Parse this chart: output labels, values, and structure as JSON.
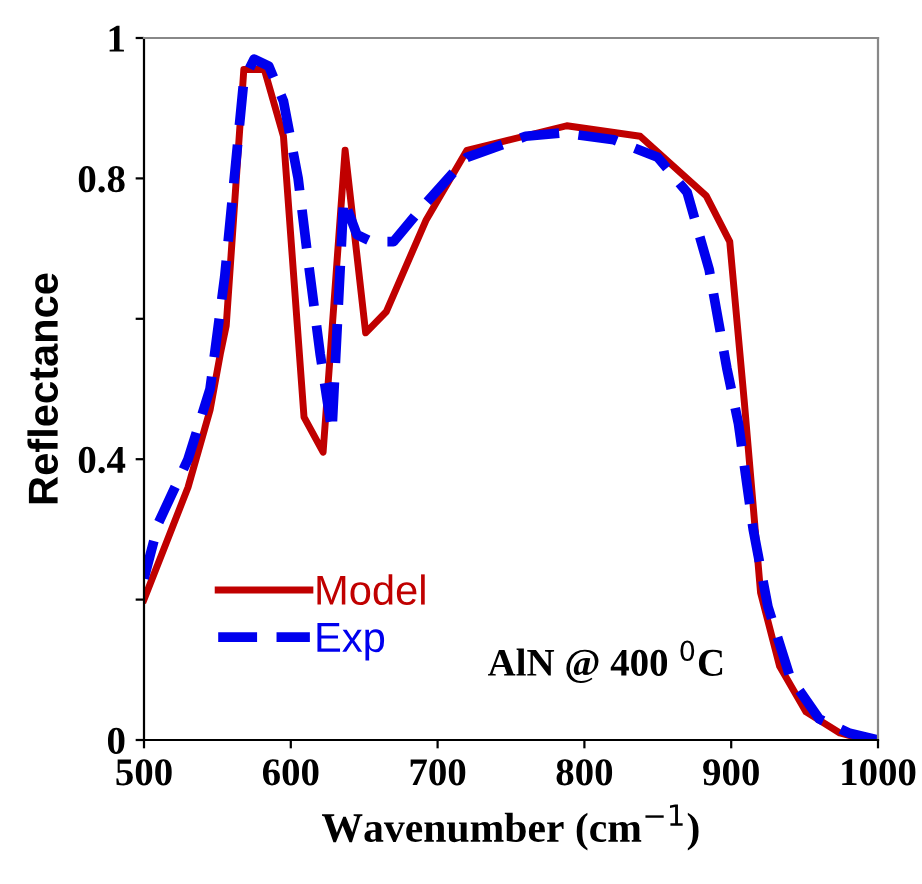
{
  "chart_data": {
    "type": "line",
    "xlabel": "Wavenumber (cm$^{−1}$)",
    "ylabel": "Reflectance",
    "xlim": [
      500,
      1000
    ],
    "xticks": [
      500,
      600,
      700,
      800,
      900,
      1000
    ],
    "ylim": [
      0,
      1
    ],
    "yticks": [
      0,
      {
        "value": 0.2,
        "label": null
      },
      0.4,
      {
        "value": 0.6,
        "label": null
      },
      0.8,
      1
    ],
    "grid": false,
    "legend": "bottom left",
    "marker": "none",
    "annotations": [
      "AlN @ 400 $^{0}$C"
    ],
    "series": [
      {
        "name": "Model",
        "color": "#c00000",
        "line_style": "solid",
        "x": [
          500,
          515,
          530,
          545,
          552,
          556,
          568,
          582,
          595,
          609,
          622,
          637,
          651,
          665,
          692,
          720,
          788,
          838,
          883,
          899,
          909,
          920,
          933,
          951,
          974,
          992,
          1000
        ],
        "values": [
          0.2,
          0.28,
          0.36,
          0.47,
          0.55,
          0.59,
          0.955,
          0.955,
          0.86,
          0.46,
          0.41,
          0.84,
          0.58,
          0.61,
          0.74,
          0.84,
          0.875,
          0.86,
          0.775,
          0.71,
          0.48,
          0.21,
          0.105,
          0.04,
          0.01,
          0.0,
          0.0
        ]
      },
      {
        "name": "Exp",
        "color": "#0000ee",
        "line_style": "dashed",
        "x": [
          500,
          510,
          530,
          545,
          555,
          568,
          575,
          585,
          595,
          605,
          612,
          620,
          628,
          636,
          645,
          655,
          670,
          690,
          720,
          760,
          785,
          820,
          850,
          870,
          885,
          897,
          905,
          915,
          925,
          940,
          960,
          980,
          1000
        ],
        "values": [
          0.23,
          0.31,
          0.4,
          0.5,
          0.66,
          0.94,
          0.97,
          0.96,
          0.91,
          0.8,
          0.68,
          0.55,
          0.44,
          0.77,
          0.72,
          0.71,
          0.71,
          0.76,
          0.83,
          0.86,
          0.865,
          0.855,
          0.83,
          0.78,
          0.67,
          0.53,
          0.45,
          0.3,
          0.19,
          0.09,
          0.03,
          0.01,
          0.0
        ]
      }
    ]
  }
}
